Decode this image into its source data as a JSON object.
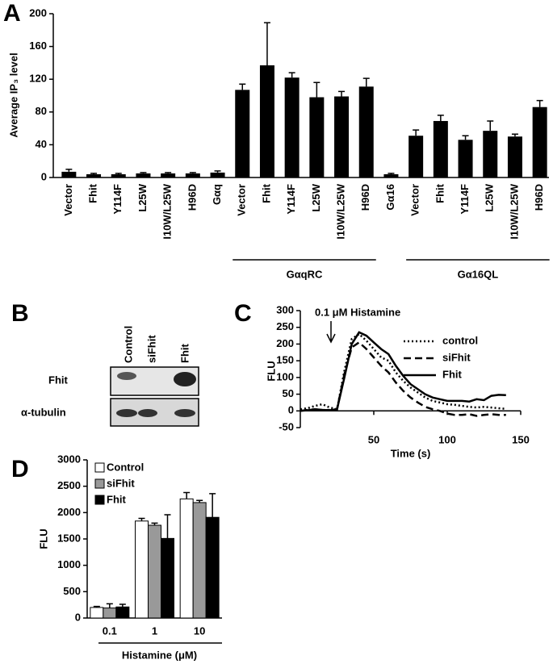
{
  "chart_data": [
    {
      "type": "bar",
      "panel": "A",
      "ylabel": "Average IP₃ level",
      "categories": [
        "Vector",
        "Fhit",
        "Y114F",
        "L25W",
        "I10W/L25W",
        "H96D",
        "Gαq",
        "Vector",
        "Fhit",
        "Y114F",
        "L25W",
        "I10W/L25W",
        "H96D",
        "Gα16",
        "Vector",
        "Fhit",
        "Y114F",
        "L25W",
        "I10W/L25W",
        "H96D"
      ],
      "values": [
        7,
        4,
        4,
        5,
        5,
        5,
        6,
        107,
        137,
        122,
        98,
        99,
        111,
        4,
        51,
        69,
        46,
        57,
        50,
        86
      ],
      "errors": [
        3,
        1,
        1,
        1,
        1,
        1,
        2,
        7,
        52,
        6,
        18,
        6,
        10,
        1,
        7,
        7,
        5,
        12,
        3,
        8
      ],
      "color": "#000000",
      "groups": [
        "GαqRC",
        "Gα16QL"
      ],
      "ylim": [
        0,
        200
      ],
      "yticks": [
        0,
        40,
        80,
        120,
        160,
        200
      ],
      "grid": false
    },
    {
      "type": "line",
      "panel": "C",
      "ylabel": "FLU",
      "xlabel": "Time (s)",
      "annotation": "0.1 μM Histamine",
      "x": [
        0,
        5,
        10,
        15,
        20,
        25,
        30,
        35,
        40,
        45,
        50,
        55,
        60,
        65,
        70,
        75,
        80,
        85,
        90,
        95,
        100,
        105,
        110,
        115,
        120,
        125,
        130,
        135,
        140
      ],
      "series": [
        {
          "name": "control",
          "color": "#000000",
          "dash": "dotted",
          "values": [
            5,
            8,
            15,
            20,
            10,
            5,
            120,
            215,
            230,
            210,
            185,
            160,
            150,
            115,
            90,
            70,
            55,
            40,
            30,
            25,
            20,
            18,
            15,
            12,
            10,
            12,
            10,
            8,
            6
          ]
        },
        {
          "name": "siFhit",
          "color": "#000000",
          "dash": "dashed",
          "values": [
            0,
            3,
            5,
            2,
            3,
            5,
            110,
            190,
            205,
            185,
            160,
            135,
            115,
            85,
            60,
            40,
            25,
            12,
            5,
            0,
            -8,
            -12,
            -12,
            -10,
            -15,
            -12,
            -10,
            -12,
            -12
          ]
        },
        {
          "name": "Fhit",
          "color": "#000000",
          "dash": "solid",
          "values": [
            0,
            2,
            5,
            3,
            2,
            5,
            100,
            200,
            235,
            225,
            205,
            185,
            170,
            135,
            105,
            80,
            65,
            50,
            40,
            35,
            30,
            30,
            30,
            28,
            35,
            32,
            45,
            48,
            47
          ]
        }
      ],
      "xlim": [
        0,
        150
      ],
      "xticks": [
        50,
        100,
        150
      ],
      "ylim": [
        -50,
        300
      ],
      "yticks": [
        -50,
        0,
        50,
        100,
        150,
        200,
        250,
        300
      ],
      "legend": "upper right"
    },
    {
      "type": "grouped-bar",
      "panel": "D",
      "ylabel": "FLU",
      "xlabel": "Histamine (μM)",
      "categories": [
        "0.1",
        "1",
        "10"
      ],
      "series": [
        {
          "name": "Control",
          "color": "#ffffff",
          "values": [
            200,
            1840,
            2260
          ],
          "errors": [
            20,
            50,
            120
          ]
        },
        {
          "name": "siFhit",
          "color": "#999999",
          "values": [
            190,
            1760,
            2190
          ],
          "errors": [
            80,
            40,
            40
          ]
        },
        {
          "name": "Fhit",
          "color": "#000000",
          "values": [
            210,
            1510,
            1910
          ],
          "errors": [
            50,
            450,
            450
          ]
        }
      ],
      "ylim": [
        0,
        3000
      ],
      "yticks": [
        0,
        500,
        1000,
        1500,
        2000,
        2500,
        3000
      ],
      "legend": "upper left"
    }
  ],
  "blot": {
    "panel": "B",
    "columns": [
      "Control",
      "siFhit",
      "Fhit"
    ],
    "rows": [
      "Fhit",
      "α-tubulin"
    ]
  }
}
